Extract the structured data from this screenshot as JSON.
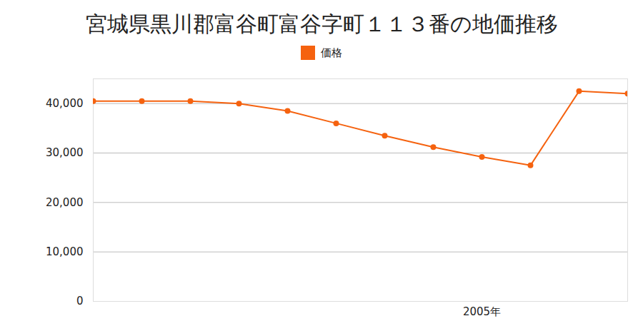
{
  "chart_data": {
    "type": "line",
    "title": "宮城県黒川郡富谷町富谷字町１１３番の地価推移",
    "categories": [
      null,
      null,
      null,
      null,
      null,
      null,
      null,
      null,
      "2005年",
      null,
      null,
      null
    ],
    "series": [
      {
        "name": "価格",
        "color": "#f5620f",
        "marker": "circle",
        "values": [
          40500,
          40500,
          40500,
          40000,
          38500,
          36000,
          33500,
          31200,
          29200,
          27500,
          42500,
          42000
        ]
      }
    ],
    "ylim": [
      0,
      45000
    ],
    "yticks": [
      0,
      {
        "value": 10000,
        "label": "10,000"
      },
      {
        "value": 20000,
        "label": "20,000"
      },
      {
        "value": 30000,
        "label": "30,000"
      },
      {
        "value": 40000,
        "label": "40,000"
      }
    ],
    "grid": true,
    "legend": "top"
  }
}
